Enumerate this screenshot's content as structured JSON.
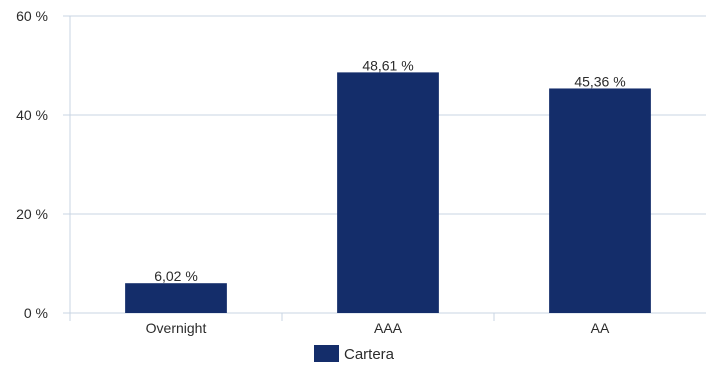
{
  "chart_data": {
    "type": "bar",
    "categories": [
      "Overnight",
      "AAA",
      "AA"
    ],
    "series": [
      {
        "name": "Cartera",
        "values": [
          6.02,
          48.61,
          45.36
        ]
      }
    ],
    "data_labels": [
      "6,02 %",
      "48,61 %",
      "45,36 %"
    ],
    "y_ticks": [
      {
        "value": 0,
        "label": "0 %"
      },
      {
        "value": 20,
        "label": "20 %"
      },
      {
        "value": 40,
        "label": "40 %"
      },
      {
        "value": 60,
        "label": "60 %"
      }
    ],
    "ylim": [
      0,
      60
    ],
    "grid": true,
    "legend_position": "bottom-center",
    "title": "",
    "xlabel": "",
    "ylabel": ""
  },
  "colors": {
    "bar": "#142d6a",
    "grid": "#c9d4e3",
    "text": "#2b2b2b"
  }
}
